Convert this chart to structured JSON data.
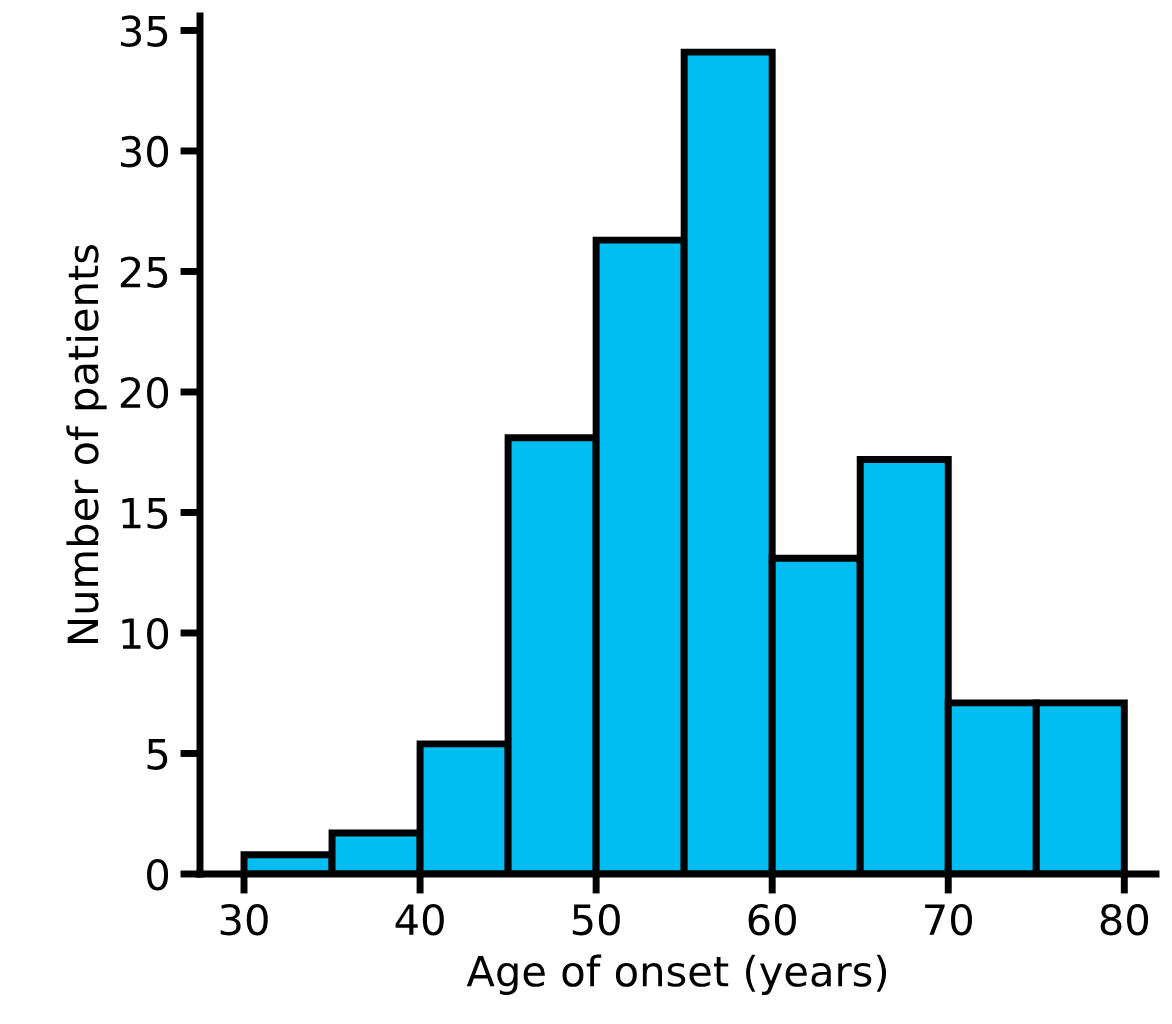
{
  "chart_data": {
    "type": "histogram",
    "xlabel": "Age of onset (years)",
    "ylabel": "Number of patients",
    "bins": [
      30,
      35,
      40,
      45,
      50,
      55,
      60,
      65,
      70,
      75,
      80
    ],
    "values": [
      0.8,
      1.7,
      5.4,
      18.1,
      26.3,
      34.1,
      13.1,
      17.2,
      7.1,
      7.1
    ],
    "color": "#00bef2",
    "xlim": [
      27.5,
      81.8
    ],
    "ylim": [
      0,
      35.6
    ],
    "xticks": [
      30,
      40,
      50,
      60,
      70,
      80
    ],
    "yticks": [
      0,
      5,
      10,
      15,
      20,
      25,
      30,
      35
    ],
    "grid": false
  }
}
